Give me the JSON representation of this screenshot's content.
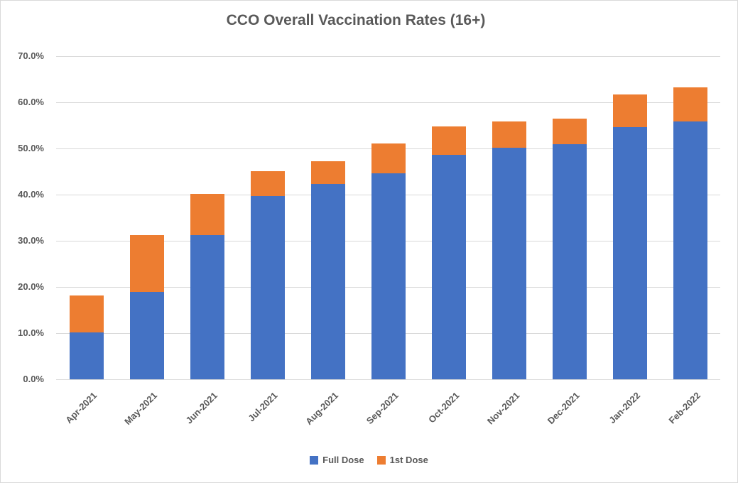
{
  "colors": {
    "full_dose": "#4472C4",
    "first_dose": "#ED7D31",
    "gridline": "#D9D9D9",
    "text": "#595959",
    "border": "#D9D9D9",
    "background": "#FFFFFF"
  },
  "chart_data": {
    "type": "bar",
    "stacked": true,
    "title": "CCO Overall Vaccination Rates (16+)",
    "categories": [
      "Apr-2021",
      "May-2021",
      "Jun-2021",
      "Jul-2021",
      "Aug-2021",
      "Sep-2021",
      "Oct-2021",
      "Nov-2021",
      "Dec-2021",
      "Jan-2022",
      "Feb-2022"
    ],
    "series": [
      {
        "name": "Full Dose",
        "color": "#4472C4",
        "values": [
          10.1,
          18.9,
          31.2,
          39.7,
          42.3,
          44.6,
          48.6,
          50.2,
          50.9,
          54.6,
          55.9
        ]
      },
      {
        "name": "1st Dose",
        "color": "#ED7D31",
        "values": [
          8.0,
          12.4,
          9.0,
          5.4,
          5.0,
          6.5,
          6.2,
          5.7,
          5.6,
          7.1,
          7.4
        ]
      }
    ],
    "stacked_totals": [
      18.1,
      31.3,
      40.2,
      45.1,
      47.3,
      51.1,
      54.8,
      55.9,
      56.5,
      61.7,
      63.3
    ],
    "value_unit": "percent",
    "xlabel": "",
    "ylabel": "",
    "ylim": [
      0,
      70
    ],
    "y_tick_step": 10,
    "y_tick_labels": [
      "0.0%",
      "10.0%",
      "20.0%",
      "30.0%",
      "40.0%",
      "50.0%",
      "60.0%",
      "70.0%"
    ],
    "grid": true,
    "legend_position": "bottom"
  }
}
